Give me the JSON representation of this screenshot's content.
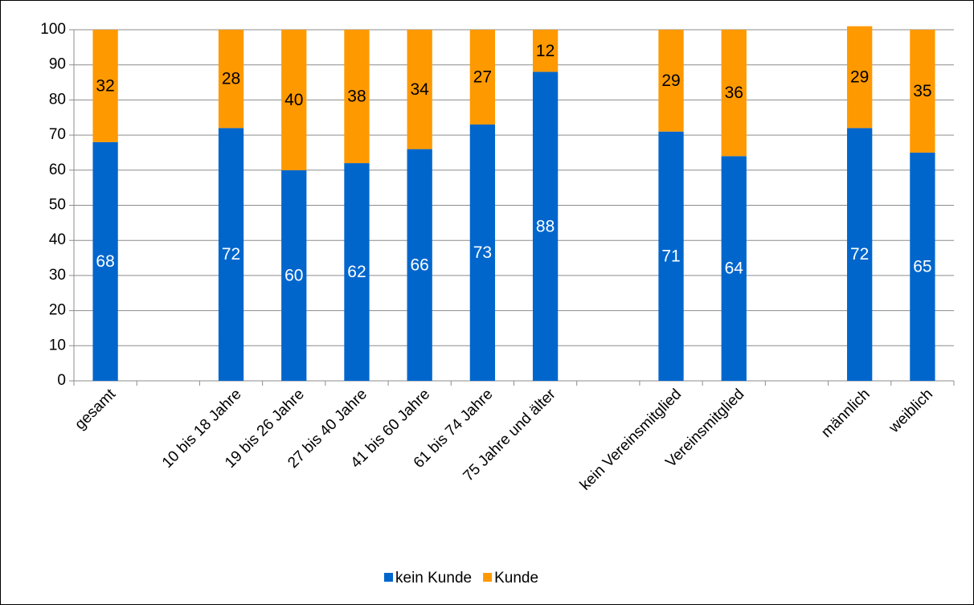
{
  "chart_data": {
    "type": "bar",
    "stacked": true,
    "categories": [
      "gesamt",
      null,
      "10 bis 18 Jahre",
      "19 bis 26 Jahre",
      "27 bis 40 Jahre",
      "41 bis 60 Jahre",
      "61 bis 74 Jahre",
      "75 Jahre und älter",
      null,
      "kein Vereinsmitglied",
      "Vereinsmitglied",
      null,
      "männlich",
      "weiblich"
    ],
    "series": [
      {
        "name": "kein Kunde",
        "color": "#0066cc",
        "label_color": "#ffffff",
        "values": [
          68,
          null,
          72,
          60,
          62,
          66,
          73,
          88,
          null,
          71,
          64,
          null,
          72,
          65
        ]
      },
      {
        "name": "Kunde",
        "color": "#ff9900",
        "label_color": "#000000",
        "values": [
          32,
          null,
          28,
          40,
          38,
          34,
          27,
          12,
          null,
          29,
          36,
          null,
          29,
          35
        ]
      }
    ],
    "ylim": [
      0,
      100
    ],
    "yticks": [
      0,
      10,
      20,
      30,
      40,
      50,
      60,
      70,
      80,
      90,
      100
    ],
    "grid": true,
    "legend": "bottom"
  }
}
